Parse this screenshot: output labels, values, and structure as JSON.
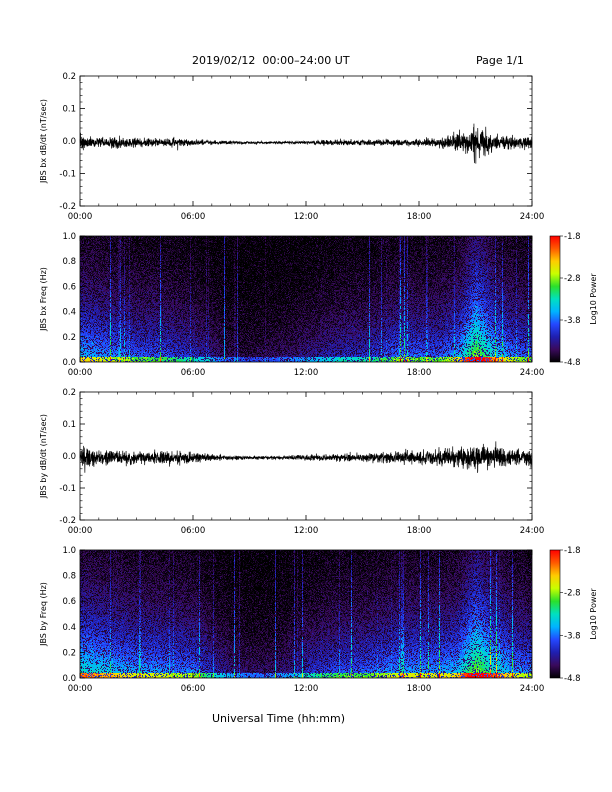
{
  "header": {
    "title": "2019/02/12  00:00–24:00 UT",
    "page": "Page 1/1"
  },
  "x_axis_label": "Universal Time (hh:mm)",
  "colors": {
    "trace": "#000000",
    "colormap": [
      "#000000",
      "#3a0a5c",
      "#1f1fb0",
      "#2448ff",
      "#00b4ff",
      "#00e0c0",
      "#2be02b",
      "#c8ff00",
      "#ffcc00",
      "#ff5a00",
      "#ff0000"
    ]
  },
  "chart_data": [
    {
      "type": "line",
      "ylabel": "JBS bx dB/dt (nT/sec)",
      "xlim": [
        "00:00",
        "24:00"
      ],
      "ylim": [
        -0.2,
        0.2
      ],
      "x_ticks": [
        "00:00",
        "06:00",
        "12:00",
        "18:00",
        "24:00"
      ],
      "y_ticks": [
        "0.2",
        "0.1",
        "0.0",
        "-0.1",
        "-0.2"
      ],
      "series": [
        {
          "x_hours": [
            0,
            1,
            2,
            3,
            4,
            5,
            6,
            7,
            8,
            9,
            10,
            11,
            12,
            13,
            14,
            15,
            16,
            17,
            18,
            19,
            20,
            21,
            22,
            23,
            24
          ],
          "amplitude": [
            0.04,
            0.02,
            0.025,
            0.02,
            0.02,
            0.02,
            0.015,
            0.01,
            0.008,
            0.006,
            0.006,
            0.007,
            0.008,
            0.012,
            0.012,
            0.012,
            0.015,
            0.015,
            0.015,
            0.02,
            0.04,
            0.08,
            0.04,
            0.03,
            0.03
          ]
        }
      ]
    },
    {
      "type": "heatmap",
      "ylabel": "JBS bx Freq (Hz)",
      "xlim": [
        "00:00",
        "24:00"
      ],
      "ylim": [
        0.0,
        1.0
      ],
      "x_ticks": [
        "00:00",
        "06:00",
        "12:00",
        "18:00",
        "24:00"
      ],
      "y_ticks": [
        "1.0",
        "0.8",
        "0.6",
        "0.4",
        "0.2",
        "0.0"
      ],
      "colorbar": {
        "label": "Log10 Power",
        "ticks": [
          "-1.8",
          "-2.8",
          "-3.8",
          "-4.8"
        ],
        "range": [
          -4.8,
          -1.8
        ]
      },
      "activity_by_hour": [
        0.55,
        0.5,
        0.45,
        0.4,
        0.4,
        0.35,
        0.3,
        0.2,
        0.12,
        0.1,
        0.12,
        0.15,
        0.2,
        0.25,
        0.3,
        0.3,
        0.35,
        0.45,
        0.4,
        0.4,
        0.5,
        0.85,
        0.6,
        0.45,
        0.4
      ]
    },
    {
      "type": "line",
      "ylabel": "JBS by dB/dt (nT/sec)",
      "xlim": [
        "00:00",
        "24:00"
      ],
      "ylim": [
        -0.2,
        0.2
      ],
      "x_ticks": [
        "00:00",
        "06:00",
        "12:00",
        "18:00",
        "24:00"
      ],
      "y_ticks": [
        "0.2",
        "0.1",
        "0.0",
        "-0.1",
        "-0.2"
      ],
      "series": [
        {
          "x_hours": [
            0,
            1,
            2,
            3,
            4,
            5,
            6,
            7,
            8,
            9,
            10,
            11,
            12,
            13,
            14,
            15,
            16,
            17,
            18,
            19,
            20,
            21,
            22,
            23,
            24
          ],
          "amplitude": [
            0.06,
            0.035,
            0.03,
            0.03,
            0.03,
            0.03,
            0.025,
            0.015,
            0.01,
            0.008,
            0.008,
            0.01,
            0.012,
            0.015,
            0.018,
            0.02,
            0.025,
            0.03,
            0.03,
            0.035,
            0.045,
            0.06,
            0.05,
            0.045,
            0.045
          ]
        }
      ]
    },
    {
      "type": "heatmap",
      "ylabel": "JBS by Freq (Hz)",
      "xlim": [
        "00:00",
        "24:00"
      ],
      "ylim": [
        0.0,
        1.0
      ],
      "x_ticks": [
        "00:00",
        "06:00",
        "12:00",
        "18:00",
        "24:00"
      ],
      "y_ticks": [
        "1.0",
        "0.8",
        "0.6",
        "0.4",
        "0.2",
        "0.0"
      ],
      "colorbar": {
        "label": "Log10 Power",
        "ticks": [
          "-1.8",
          "-2.8",
          "-3.8",
          "-4.8"
        ],
        "range": [
          -4.8,
          -1.8
        ]
      },
      "activity_by_hour": [
        0.65,
        0.6,
        0.55,
        0.5,
        0.5,
        0.45,
        0.45,
        0.3,
        0.2,
        0.15,
        0.15,
        0.2,
        0.3,
        0.35,
        0.4,
        0.4,
        0.45,
        0.5,
        0.5,
        0.5,
        0.55,
        0.85,
        0.65,
        0.5,
        0.45
      ]
    }
  ]
}
